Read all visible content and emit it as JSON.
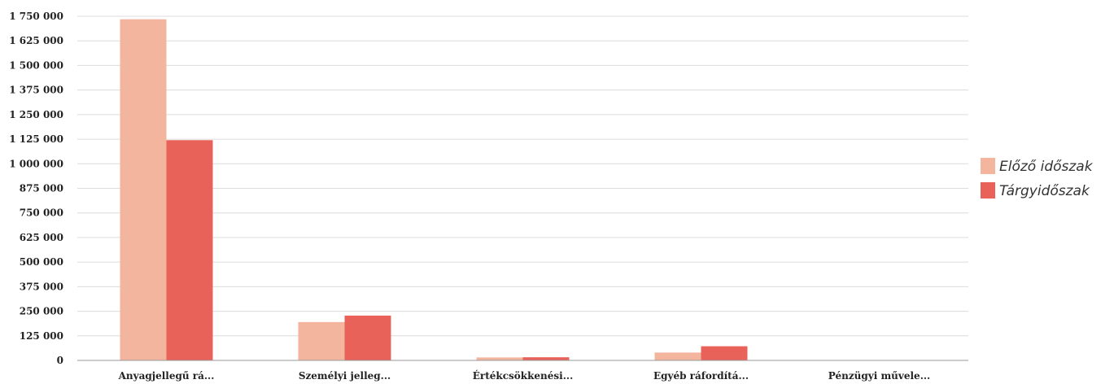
{
  "chart_data": {
    "type": "bar",
    "title": "",
    "xlabel": "",
    "ylabel": "",
    "categories": [
      "Anyagjellegű rá...",
      "Személyi jelleg...",
      "Értékcsökkenési...",
      "Egyéb ráfordítá...",
      "Pénzügyi művele..."
    ],
    "series": [
      {
        "name": "Előző időszak",
        "color": "#f4b59f",
        "values": [
          1735000,
          195000,
          15000,
          40000,
          0
        ]
      },
      {
        "name": "Tárgyidőszak",
        "color": "#e9625a",
        "values": [
          1120000,
          228000,
          16000,
          72000,
          0
        ]
      }
    ],
    "yticks": [
      0,
      125000,
      250000,
      375000,
      500000,
      625000,
      750000,
      875000,
      1000000,
      1125000,
      1250000,
      1375000,
      1500000,
      1625000,
      1750000
    ],
    "ytick_labels": [
      "0",
      "125 000",
      "250 000",
      "375 000",
      "500 000",
      "625 000",
      "750 000",
      "875 000",
      "1 000 000",
      "1 125 000",
      "1 250 000",
      "1 375 000",
      "1 500 000",
      "1 625 000",
      "1 750 000"
    ],
    "ylim": [
      0,
      1750000
    ],
    "grid": true,
    "legend_position": "right"
  }
}
